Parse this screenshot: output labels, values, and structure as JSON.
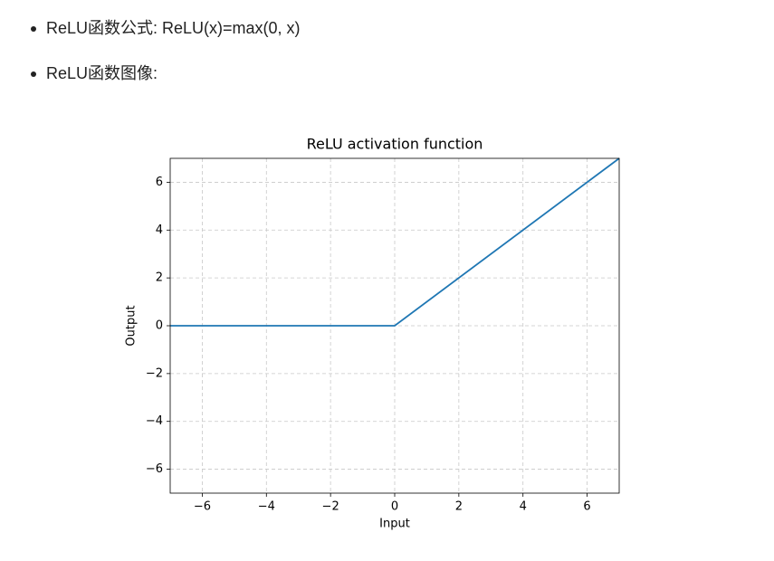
{
  "bullets": [
    "ReLU函数公式: ReLU(x)=max(0, x)",
    "ReLU函数图像:"
  ],
  "chart_data": {
    "type": "line",
    "title": "ReLU activation function",
    "x_label": "Input",
    "y_label": "Output",
    "x": [
      -7,
      0,
      7
    ],
    "values": [
      0,
      0,
      7
    ],
    "color": "#1f77b4",
    "xlim": [
      -7,
      7
    ],
    "ylim": [
      -7,
      7
    ],
    "xticks": [
      {
        "value": -6,
        "label": "−6"
      },
      {
        "value": -4,
        "label": "−4"
      },
      {
        "value": -2,
        "label": "−2"
      },
      0,
      2,
      4,
      6
    ],
    "yticks": [
      {
        "value": -6,
        "label": "−6"
      },
      {
        "value": -4,
        "label": "−4"
      },
      {
        "value": -2,
        "label": "−2"
      },
      0,
      2,
      4,
      6
    ],
    "grid": true
  }
}
